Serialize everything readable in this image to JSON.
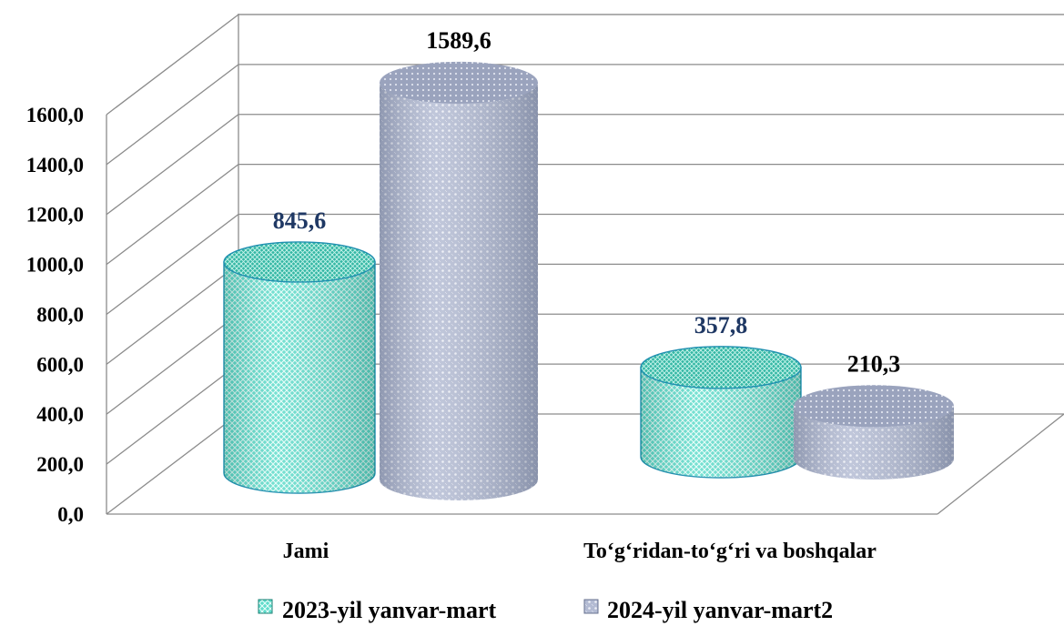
{
  "chart_data": {
    "type": "bar",
    "style": "3d-cylinder",
    "categories": [
      "Jami",
      "To‘g‘ridan-to‘g‘ri va boshqalar"
    ],
    "series": [
      {
        "name": "2023-yil yanvar-mart",
        "values": [
          845.6,
          357.8
        ],
        "labels": [
          "845,6",
          "357,8"
        ],
        "color": "#48d1bf",
        "label_color": "#1f3864"
      },
      {
        "name": "2024-yil yanvar-mart2",
        "values": [
          1589.6,
          210.3
        ],
        "labels": [
          "1589,6",
          "210,3"
        ],
        "color": "#b0b8d0",
        "label_color": "#000000"
      }
    ],
    "y_ticks": [
      "0,0",
      "200,0",
      "400,0",
      "600,0",
      "800,0",
      "1000,0",
      "1200,0",
      "1400,0",
      "1600,0"
    ],
    "ylim": [
      0,
      1600
    ],
    "grid": true,
    "legend_position": "bottom"
  }
}
